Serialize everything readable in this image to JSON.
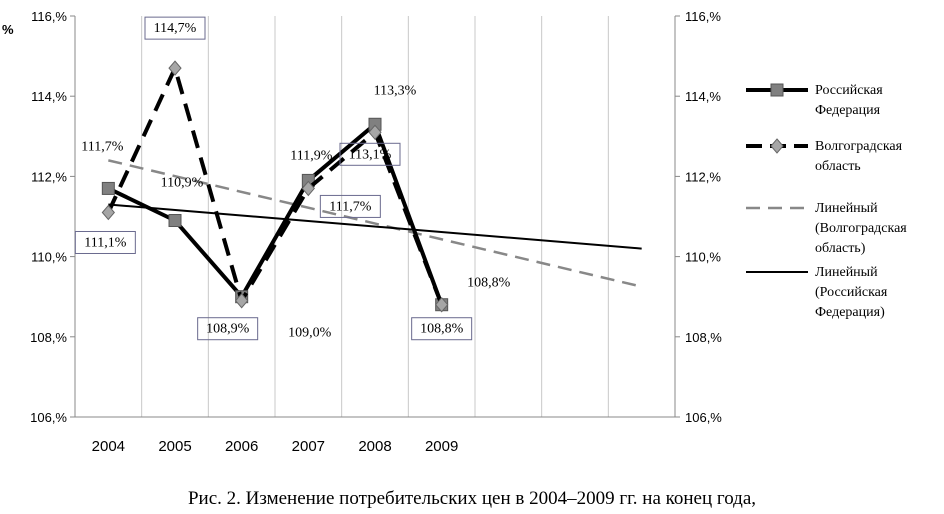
{
  "caption": "Рис. 2. Изменение потребительских цен в 2004–2009 гг. на конец года,",
  "chart_data": {
    "type": "line",
    "title": "",
    "ylabel": "%",
    "xlabel": "",
    "x": [
      "2004",
      "2005",
      "2006",
      "2007",
      "2008",
      "2009"
    ],
    "ylim": [
      106,
      116
    ],
    "yticks": [
      "106,%",
      "108,%",
      "110,%",
      "112,%",
      "114,%",
      "116,%"
    ],
    "y2ticks": [
      "106,%",
      "108,%",
      "110,%",
      "112,%",
      "114,%",
      "116,%"
    ],
    "grid": "vertical",
    "legend_position": "right",
    "series": [
      {
        "name": "Российская Федерация",
        "values": [
          111.7,
          110.9,
          109.0,
          111.9,
          113.3,
          108.8
        ],
        "labels": [
          "111,7%",
          "110,9%",
          "109,0%",
          "111,9%",
          "113,3%",
          "108,8%"
        ],
        "color": "#000000",
        "style": "solid-thick",
        "marker": "square",
        "marker_color": "#808080"
      },
      {
        "name": "Волгоградская область",
        "values": [
          111.1,
          114.7,
          108.9,
          111.7,
          113.1,
          108.8
        ],
        "labels": [
          "111,1%",
          "114,7%",
          "108,9%",
          "111,7%",
          "113,1%",
          "108,8%"
        ],
        "color": "#000000",
        "style": "dashed-thick",
        "marker": "diamond",
        "marker_color": "#a6a6a6"
      }
    ],
    "trendlines": [
      {
        "name": "Линейный (Волгоградская область)",
        "start": 112.4,
        "end": 109.25,
        "color": "#888888",
        "style": "dashed"
      },
      {
        "name": "Линейный (Российская Федерация)",
        "start": 111.3,
        "end": 110.2,
        "color": "#000000",
        "style": "solid-thin"
      }
    ],
    "legend": [
      {
        "lines": [
          "Российская",
          "Федерация"
        ]
      },
      {
        "lines": [
          "Волгоградская",
          "область"
        ]
      },
      {
        "lines": [
          "Линейный",
          "(Волгоградская",
          "область)"
        ]
      },
      {
        "lines": [
          "Линейный",
          "(Российская",
          "Федерация)"
        ]
      }
    ]
  }
}
